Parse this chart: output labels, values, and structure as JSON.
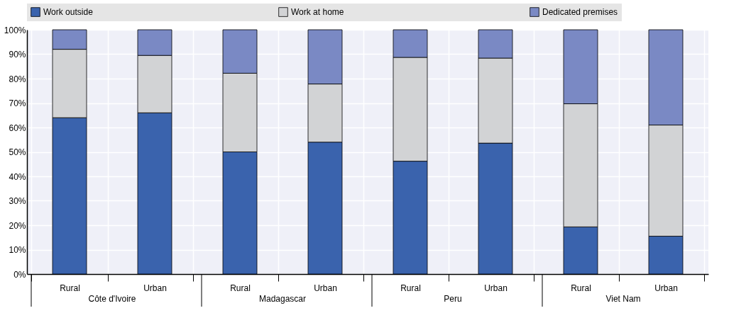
{
  "chart_data": {
    "type": "bar",
    "stacked": true,
    "categories": [
      "Rural",
      "Urban",
      "Rural",
      "Urban",
      "Rural",
      "Urban",
      "Rural",
      "Urban"
    ],
    "series": [
      {
        "name": "Work outside",
        "color": "#3a63ad",
        "values": [
          64,
          66,
          50,
          54,
          46.2,
          53.6,
          19.3,
          15.5
        ]
      },
      {
        "name": "Work at home",
        "color": "#d2d3d5",
        "values": [
          28,
          23.5,
          32.2,
          23.8,
          42.5,
          34.8,
          50.4,
          45.5
        ]
      },
      {
        "name": "Dedicated premises",
        "color": "#7a89c4",
        "values": [
          8,
          10.5,
          17.8,
          22.2,
          11.3,
          11.6,
          30.3,
          39
        ]
      }
    ],
    "annotations": [
      "Côte d'Ivoire",
      "Madagascar",
      "Peru",
      "Viet Nam"
    ],
    "ylim": [
      0,
      100
    ],
    "yticks": [
      {
        "value": 0,
        "label": "0%"
      },
      {
        "value": 10,
        "label": "10%"
      },
      {
        "value": 20,
        "label": "20%"
      },
      {
        "value": 30,
        "label": "30%"
      },
      {
        "value": 40,
        "label": "40%"
      },
      {
        "value": 50,
        "label": "50%"
      },
      {
        "value": 60,
        "label": "60%"
      },
      {
        "value": 70,
        "label": "70%"
      },
      {
        "value": 80,
        "label": "80%"
      },
      {
        "value": 90,
        "label": "90%"
      },
      {
        "value": 100,
        "label": "100%"
      }
    ],
    "grid": true,
    "legend": "top"
  }
}
